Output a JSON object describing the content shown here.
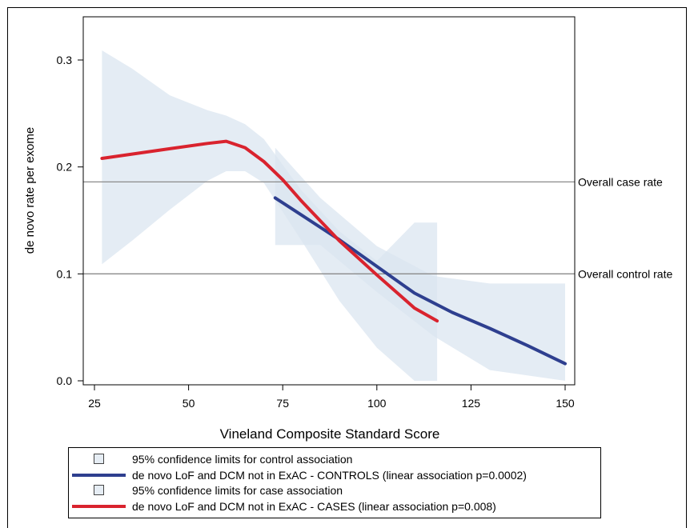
{
  "chart_data": {
    "type": "line",
    "xlabel": "Vineland Composite Standard Score",
    "ylabel": "de novo rate per exome",
    "xlim": [
      25,
      150
    ],
    "ylim": [
      0.0,
      0.3
    ],
    "x_ticks": [
      25,
      50,
      75,
      100,
      125,
      150
    ],
    "y_ticks": [
      "0.0",
      "0.1",
      "0.2",
      "0.3"
    ],
    "y_tick_values": [
      0.0,
      0.1,
      0.2,
      0.3
    ],
    "grid": false,
    "reference_lines": [
      {
        "label": "Overall case rate",
        "y": 0.186
      },
      {
        "label": "Overall control rate",
        "y": 0.1
      }
    ],
    "bands": [
      {
        "name": "95% confidence limits for control association",
        "color": "#dbe6f0",
        "x": [
          73,
          85,
          100,
          115,
          130,
          150
        ],
        "upper": [
          0.218,
          0.171,
          0.126,
          0.098,
          0.091,
          0.091
        ],
        "lower": [
          0.127,
          0.127,
          0.083,
          0.042,
          0.01,
          0.0
        ]
      },
      {
        "name": "95% confidence limits for case association",
        "color": "#dbe6f0",
        "x": [
          27,
          35,
          45,
          55,
          60,
          65,
          70,
          80,
          90,
          100,
          110,
          116
        ],
        "upper": [
          0.309,
          0.292,
          0.267,
          0.253,
          0.248,
          0.24,
          0.226,
          0.178,
          0.14,
          0.112,
          0.148,
          0.148
        ],
        "lower": [
          0.109,
          0.131,
          0.16,
          0.187,
          0.196,
          0.196,
          0.185,
          0.131,
          0.075,
          0.031,
          0.0,
          0.0
        ]
      }
    ],
    "series": [
      {
        "name": "de novo LoF and DCM not in ExAC - CONTROLS (linear association p=0.0002)",
        "color": "#2e3f8f",
        "x": [
          73,
          80,
          90,
          100,
          110,
          120,
          130,
          140,
          150
        ],
        "y": [
          0.171,
          0.155,
          0.132,
          0.107,
          0.082,
          0.064,
          0.049,
          0.033,
          0.016
        ]
      },
      {
        "name": "de novo LoF and DCM not in ExAC - CASES (linear association p=0.008)",
        "color": "#d9232e",
        "x": [
          27,
          35,
          45,
          55,
          60,
          65,
          70,
          75,
          80,
          90,
          100,
          110,
          116
        ],
        "y": [
          0.208,
          0.212,
          0.217,
          0.222,
          0.224,
          0.218,
          0.205,
          0.188,
          0.168,
          0.131,
          0.099,
          0.068,
          0.056
        ]
      }
    ],
    "legend": {
      "position": "bottom",
      "entries": [
        {
          "kind": "box",
          "label": "95% confidence limits for control association"
        },
        {
          "kind": "line",
          "series": 0,
          "label": "de novo LoF and DCM not in ExAC - CONTROLS (linear association p=0.0002)"
        },
        {
          "kind": "box",
          "label": "95% confidence limits for case association"
        },
        {
          "kind": "line",
          "series": 1,
          "label": "de novo LoF and DCM not in ExAC - CASES (linear association p=0.008)"
        }
      ]
    }
  }
}
